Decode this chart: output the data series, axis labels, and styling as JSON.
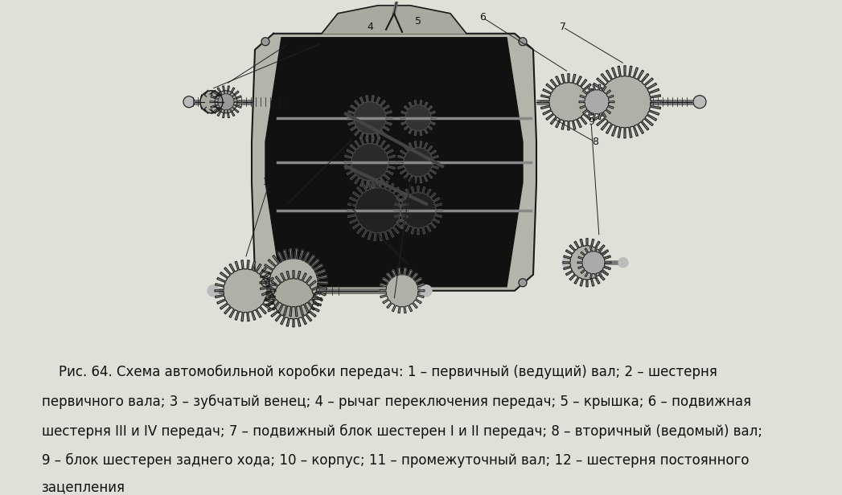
{
  "bg_color": "#e0dfd8",
  "fig_width": 10.47,
  "fig_height": 6.16,
  "caption_text": "    Рис. 64. Схема автомобильной коробки передач: 1 – первичный (ведущий) вал; 2 – шестерня\nпервичного вала; 3 – зубчатый венец; 4 – рычаг переключения передач; 5 – крышка; 6 – подвижная\nшестерня III и IV передач; 7 – подвижный блок шестерен I и II передач; 8 – вторичный (ведомый) вал;\n9 – блок шестерен заднего хода; 10 – корпус; 11 – промежуточный вал; 12 – шестерня постоянного\nзацепления",
  "caption_fontsize": 12,
  "diag_color": "#1a1a1a",
  "light_gray": "#c8c8c0",
  "mid_gray": "#888880",
  "dark_gray": "#404040"
}
